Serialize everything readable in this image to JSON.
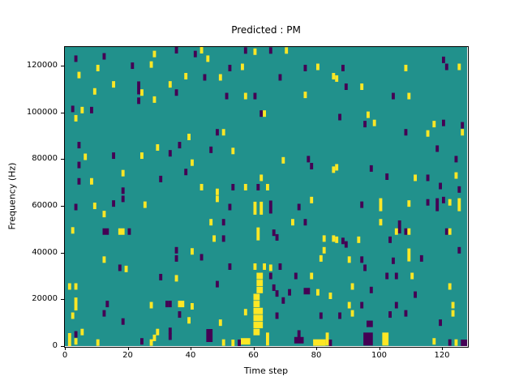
{
  "chart_data": {
    "type": "heatmap",
    "title": "Predicted : PM",
    "xlabel": "Time step",
    "ylabel": "Frequency (Hz)",
    "x_range": [
      0,
      128
    ],
    "y_range": [
      0,
      128000
    ],
    "xticks": [
      0,
      20,
      40,
      60,
      80,
      100,
      120
    ],
    "yticks": [
      0,
      20000,
      40000,
      60000,
      80000,
      100000,
      120000
    ],
    "grid": false,
    "legend": null,
    "colors": {
      "background": "#21918c",
      "y": "#fde725",
      "p": "#440154"
    },
    "marker_px": {
      "w": 4,
      "h": 8
    },
    "cells": [
      [
        3,
        123000,
        "p"
      ],
      [
        12,
        124000,
        "p"
      ],
      [
        28,
        125000,
        "y"
      ],
      [
        35,
        127000,
        "p"
      ],
      [
        41,
        125000,
        "p"
      ],
      [
        10,
        119000,
        "y"
      ],
      [
        21,
        120000,
        "p"
      ],
      [
        27,
        120500,
        "y"
      ],
      [
        4,
        116000,
        "y"
      ],
      [
        38,
        115500,
        "y"
      ],
      [
        15,
        112000,
        "y"
      ],
      [
        23,
        110500,
        "p",
        1,
        2
      ],
      [
        33,
        112000,
        "y"
      ],
      [
        9,
        109000,
        "y"
      ],
      [
        24,
        108500,
        "y"
      ],
      [
        35,
        108500,
        "p"
      ],
      [
        23,
        105000,
        "p"
      ],
      [
        28,
        105500,
        "y"
      ],
      [
        2,
        101500,
        "p"
      ],
      [
        5,
        101000,
        "y"
      ],
      [
        8,
        101000,
        "p"
      ],
      [
        3,
        97500,
        "y"
      ],
      [
        39,
        89500,
        "y"
      ],
      [
        36,
        86000,
        "p"
      ],
      [
        4,
        86000,
        "p"
      ],
      [
        29,
        85000,
        "y"
      ],
      [
        6,
        81000,
        "y"
      ],
      [
        15,
        81500,
        "p"
      ],
      [
        24,
        81500,
        "y"
      ],
      [
        33,
        82500,
        "p"
      ],
      [
        40,
        78500,
        "y"
      ],
      [
        4,
        77500,
        "p"
      ],
      [
        38,
        74500,
        "p"
      ],
      [
        18,
        74000,
        "y"
      ],
      [
        4,
        70500,
        "p"
      ],
      [
        8,
        70500,
        "y"
      ],
      [
        30,
        71500,
        "p"
      ],
      [
        18,
        66500,
        "p"
      ],
      [
        43,
        127000,
        "y"
      ],
      [
        45,
        123000,
        "y"
      ],
      [
        57,
        126500,
        "p"
      ],
      [
        60,
        126000,
        "y"
      ],
      [
        65,
        126500,
        "p"
      ],
      [
        70,
        126500,
        "y"
      ],
      [
        52,
        119000,
        "p"
      ],
      [
        56,
        119500,
        "y"
      ],
      [
        76,
        119000,
        "p"
      ],
      [
        80,
        119500,
        "y"
      ],
      [
        44,
        115000,
        "p"
      ],
      [
        49,
        115000,
        "y"
      ],
      [
        68,
        115000,
        "p"
      ],
      [
        85,
        115500,
        "y"
      ],
      [
        51,
        107000,
        "p"
      ],
      [
        57,
        107000,
        "y"
      ],
      [
        60,
        107000,
        "p"
      ],
      [
        76,
        107500,
        "y"
      ],
      [
        62,
        99500,
        "p"
      ],
      [
        63,
        99500,
        "y"
      ],
      [
        48,
        91500,
        "p"
      ],
      [
        50,
        91500,
        "y"
      ],
      [
        46,
        84000,
        "p"
      ],
      [
        53,
        83500,
        "y"
      ],
      [
        69,
        79500,
        "y"
      ],
      [
        77,
        80000,
        "p"
      ],
      [
        78,
        77000,
        "p"
      ],
      [
        85,
        75500,
        "y"
      ],
      [
        62,
        72000,
        "y"
      ],
      [
        53,
        68000,
        "p"
      ],
      [
        57,
        68000,
        "y"
      ],
      [
        61,
        68000,
        "p"
      ],
      [
        64,
        68000,
        "y"
      ],
      [
        43,
        68000,
        "y"
      ],
      [
        48,
        66000,
        "y"
      ],
      [
        120,
        122500,
        "p"
      ],
      [
        121,
        119500,
        "p"
      ],
      [
        125,
        119500,
        "y"
      ],
      [
        88,
        119000,
        "p"
      ],
      [
        108,
        119000,
        "y"
      ],
      [
        86,
        114500,
        "y"
      ],
      [
        89,
        111000,
        "p"
      ],
      [
        94,
        111000,
        "y"
      ],
      [
        104,
        107000,
        "p"
      ],
      [
        109,
        107000,
        "y"
      ],
      [
        87,
        98000,
        "p"
      ],
      [
        96,
        99000,
        "y"
      ],
      [
        95,
        95000,
        "p"
      ],
      [
        98,
        95500,
        "y"
      ],
      [
        117,
        95000,
        "y"
      ],
      [
        120,
        95500,
        "p"
      ],
      [
        126,
        94500,
        "p"
      ],
      [
        108,
        91500,
        "p"
      ],
      [
        115,
        91000,
        "y"
      ],
      [
        126,
        91500,
        "y"
      ],
      [
        118,
        84500,
        "p"
      ],
      [
        124,
        80000,
        "p"
      ],
      [
        86,
        76500,
        "y"
      ],
      [
        97,
        76000,
        "p"
      ],
      [
        102,
        72500,
        "p"
      ],
      [
        111,
        72000,
        "y"
      ],
      [
        115,
        72000,
        "p"
      ],
      [
        124,
        73000,
        "y"
      ],
      [
        119,
        68500,
        "p"
      ],
      [
        125,
        67000,
        "p"
      ],
      [
        3,
        59500,
        "p"
      ],
      [
        9,
        60000,
        "y"
      ],
      [
        15,
        61000,
        "p"
      ],
      [
        18,
        63000,
        "p"
      ],
      [
        25,
        60500,
        "y"
      ],
      [
        12,
        56500,
        "y"
      ],
      [
        2,
        49500,
        "y"
      ],
      [
        12,
        49000,
        "p",
        2
      ],
      [
        17,
        49000,
        "y",
        2
      ],
      [
        20,
        49000,
        "p"
      ],
      [
        12,
        37000,
        "y"
      ],
      [
        35,
        41000,
        "p"
      ],
      [
        40,
        40500,
        "y"
      ],
      [
        35,
        37500,
        "p"
      ],
      [
        17,
        33500,
        "p"
      ],
      [
        19,
        33000,
        "y"
      ],
      [
        30,
        29500,
        "p"
      ],
      [
        35,
        29000,
        "y"
      ],
      [
        1,
        25500,
        "y"
      ],
      [
        3,
        25500,
        "y"
      ],
      [
        3,
        18000,
        "y",
        1,
        2
      ],
      [
        13,
        18000,
        "p"
      ],
      [
        27,
        17500,
        "y"
      ],
      [
        32,
        18000,
        "p"
      ],
      [
        33,
        18000,
        "p"
      ],
      [
        36,
        18000,
        "y",
        2
      ],
      [
        40,
        17000,
        "y"
      ],
      [
        36,
        13500,
        "p"
      ],
      [
        12,
        14000,
        "p"
      ],
      [
        2,
        13000,
        "y"
      ],
      [
        18,
        10500,
        "p"
      ],
      [
        39,
        11000,
        "y"
      ],
      [
        5,
        6000,
        "y"
      ],
      [
        3,
        5000,
        "p"
      ],
      [
        33,
        6500,
        "p"
      ],
      [
        29,
        6000,
        "y"
      ],
      [
        1,
        2500,
        "y",
        1,
        2
      ],
      [
        3,
        2000,
        "y"
      ],
      [
        10,
        1500,
        "y"
      ],
      [
        24,
        2000,
        "p"
      ],
      [
        27,
        1500,
        "y"
      ],
      [
        28,
        3500,
        "y"
      ],
      [
        33,
        4000,
        "p"
      ],
      [
        48,
        63000,
        "y"
      ],
      [
        52,
        59500,
        "p"
      ],
      [
        60,
        59000,
        "y",
        1,
        2
      ],
      [
        62,
        59000,
        "y",
        1,
        2
      ],
      [
        65,
        59500,
        "p",
        1,
        2
      ],
      [
        74,
        59500,
        "p"
      ],
      [
        78,
        62500,
        "y"
      ],
      [
        46,
        53000,
        "y"
      ],
      [
        50,
        53000,
        "p"
      ],
      [
        72,
        53000,
        "y"
      ],
      [
        76,
        53000,
        "p"
      ],
      [
        61,
        48000,
        "y",
        1,
        2
      ],
      [
        66,
        48500,
        "p"
      ],
      [
        67,
        46500,
        "p"
      ],
      [
        47,
        46000,
        "y"
      ],
      [
        50,
        46000,
        "p"
      ],
      [
        82,
        46000,
        "y"
      ],
      [
        85,
        46000,
        "y"
      ],
      [
        82,
        41000,
        "y"
      ],
      [
        43,
        38000,
        "p"
      ],
      [
        81,
        37500,
        "y"
      ],
      [
        52,
        34000,
        "p"
      ],
      [
        60,
        34000,
        "y"
      ],
      [
        63,
        34000,
        "y"
      ],
      [
        65,
        33500,
        "y"
      ],
      [
        68,
        34000,
        "p"
      ],
      [
        61,
        30000,
        "y",
        2
      ],
      [
        65,
        30000,
        "p"
      ],
      [
        73,
        30000,
        "p"
      ],
      [
        78,
        30000,
        "y"
      ],
      [
        48,
        26500,
        "p"
      ],
      [
        66,
        25000,
        "p"
      ],
      [
        67,
        22500,
        "p"
      ],
      [
        69,
        19500,
        "p"
      ],
      [
        71,
        23000,
        "p"
      ],
      [
        76,
        23500,
        "p",
        2
      ],
      [
        80,
        23000,
        "y"
      ],
      [
        84,
        21500,
        "y"
      ],
      [
        61,
        27000,
        "y",
        2
      ],
      [
        61,
        24000,
        "y",
        2
      ],
      [
        60,
        21000,
        "y",
        2
      ],
      [
        60,
        18000,
        "y",
        2
      ],
      [
        60,
        15000,
        "y",
        3
      ],
      [
        60,
        12000,
        "y",
        3
      ],
      [
        60,
        9000,
        "y",
        3
      ],
      [
        60,
        6000,
        "y",
        2
      ],
      [
        57,
        14500,
        "y"
      ],
      [
        67,
        13000,
        "p"
      ],
      [
        81,
        13000,
        "p"
      ],
      [
        49,
        10000,
        "y"
      ],
      [
        45,
        4500,
        "p",
        2,
        2
      ],
      [
        50,
        1500,
        "y"
      ],
      [
        53,
        1000,
        "y"
      ],
      [
        55,
        500,
        "p"
      ],
      [
        56,
        2000,
        "y",
        3
      ],
      [
        64,
        3000,
        "y",
        1,
        2
      ],
      [
        73,
        2500,
        "p",
        3
      ],
      [
        74,
        4000,
        "p",
        1,
        2
      ],
      [
        79,
        1500,
        "y",
        4
      ],
      [
        83,
        3000,
        "y",
        1,
        2
      ],
      [
        84,
        1000,
        "p"
      ],
      [
        94,
        60500,
        "p"
      ],
      [
        100,
        60500,
        "y",
        1,
        2
      ],
      [
        109,
        61000,
        "y"
      ],
      [
        115,
        61500,
        "p"
      ],
      [
        118,
        60500,
        "p",
        1,
        2
      ],
      [
        120,
        62500,
        "p"
      ],
      [
        122,
        61500,
        "y"
      ],
      [
        125,
        60500,
        "y",
        1,
        2
      ],
      [
        100,
        53000,
        "y"
      ],
      [
        106,
        51000,
        "p",
        1,
        2
      ],
      [
        105,
        49000,
        "y"
      ],
      [
        108,
        49000,
        "p"
      ],
      [
        109,
        49000,
        "y"
      ],
      [
        121,
        49000,
        "p"
      ],
      [
        122,
        49000,
        "y"
      ],
      [
        86,
        45500,
        "y"
      ],
      [
        88,
        45000,
        "p"
      ],
      [
        89,
        43500,
        "p"
      ],
      [
        93,
        45500,
        "y"
      ],
      [
        103,
        45500,
        "p"
      ],
      [
        125,
        41000,
        "p"
      ],
      [
        90,
        37000,
        "y"
      ],
      [
        94,
        37000,
        "p"
      ],
      [
        104,
        36500,
        "p"
      ],
      [
        109,
        39000,
        "y",
        1,
        2
      ],
      [
        113,
        37500,
        "p"
      ],
      [
        95,
        33500,
        "p"
      ],
      [
        110,
        30000,
        "y"
      ],
      [
        102,
        30000,
        "p"
      ],
      [
        105,
        30000,
        "p"
      ],
      [
        111,
        22000,
        "p"
      ],
      [
        91,
        25500,
        "y"
      ],
      [
        97,
        24000,
        "p"
      ],
      [
        122,
        25500,
        "y"
      ],
      [
        90,
        17500,
        "y"
      ],
      [
        94,
        17500,
        "p"
      ],
      [
        91,
        14000,
        "y"
      ],
      [
        87,
        13000,
        "p"
      ],
      [
        103,
        13500,
        "p"
      ],
      [
        105,
        17500,
        "p"
      ],
      [
        108,
        14000,
        "p"
      ],
      [
        123,
        17500,
        "y"
      ],
      [
        123,
        14000,
        "y"
      ],
      [
        119,
        10000,
        "p"
      ],
      [
        96,
        9500,
        "p",
        2
      ],
      [
        95,
        3000,
        "p",
        3,
        2
      ],
      [
        101,
        3000,
        "y",
        2,
        2
      ],
      [
        117,
        2000,
        "y"
      ],
      [
        122,
        1500,
        "p"
      ],
      [
        124,
        1500,
        "y"
      ],
      [
        126,
        1000,
        "p",
        2
      ]
    ]
  }
}
